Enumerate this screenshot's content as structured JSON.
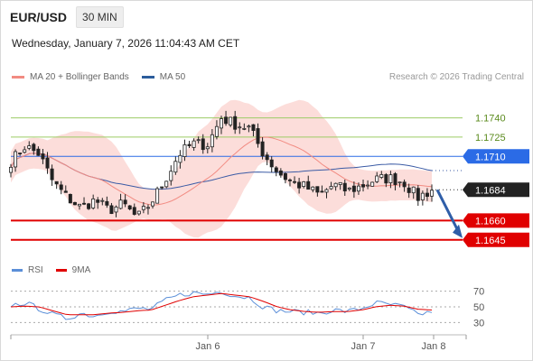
{
  "header": {
    "symbol": "EUR/USD",
    "timeframe": "30 MIN"
  },
  "datetime": "Wednesday, January 7, 2026 11:04:43 AM CET",
  "legend": {
    "items": [
      {
        "label": "MA 20 + Bollinger Bands",
        "color": "#f28b82"
      },
      {
        "label": "MA 50",
        "color": "#2c5d9c"
      }
    ],
    "credit": "Research © 2026 Trading Central"
  },
  "rsi_legend": {
    "items": [
      {
        "label": "RSI",
        "color": "#5b8fd8"
      },
      {
        "label": "9MA",
        "color": "#e00000"
      }
    ]
  },
  "colors": {
    "candle": "#222222",
    "band": "#fbd7d3",
    "ma20": "#f28b82",
    "ma50": "#3b5ba5",
    "green": "#9ccc65",
    "blue_level": "#2b6be6",
    "red_level": "#e00000",
    "arrow": "#2f5ea8"
  },
  "chart_data": [
    {
      "type": "candlestick",
      "title": "EUR/USD",
      "ylim": [
        1.1635,
        1.1765
      ],
      "x_tick_labels": [
        "Jan 6",
        "Jan 7",
        "Jan 8"
      ],
      "levels": [
        {
          "label": "1.1740",
          "value": 1.174,
          "style": "green"
        },
        {
          "label": "1.1725",
          "value": 1.1725,
          "style": "green"
        },
        {
          "label": "1.1710",
          "value": 1.171,
          "style": "blue"
        },
        {
          "label": "1.1684",
          "value": 1.1684,
          "style": "current"
        },
        {
          "label": "1.1660",
          "value": 1.166,
          "style": "red"
        },
        {
          "label": "1.1645",
          "value": 1.1645,
          "style": "red"
        }
      ],
      "close_anchors": [
        1.1706,
        1.1718,
        1.1712,
        1.169,
        1.1678,
        1.167,
        1.1676,
        1.1668,
        1.1673,
        1.1662,
        1.1674,
        1.1692,
        1.1712,
        1.172,
        1.1719,
        1.174,
        1.1735,
        1.1732,
        1.1712,
        1.1698,
        1.169,
        1.1686,
        1.168,
        1.1688,
        1.1683,
        1.1687,
        1.1692,
        1.1693,
        1.169,
        1.1678,
        1.1684
      ],
      "forecast_target": 1.1645
    },
    {
      "type": "line",
      "title": "RSI",
      "ylim": [
        20,
        80
      ],
      "y_ticks": [
        70,
        50,
        30
      ],
      "series": [
        {
          "name": "RSI",
          "anchors": [
            52,
            55,
            48,
            40,
            35,
            42,
            38,
            45,
            44,
            48,
            47,
            58,
            65,
            68,
            66,
            70,
            64,
            62,
            50,
            45,
            44,
            43,
            42,
            46,
            44,
            48,
            55,
            53,
            50,
            40,
            44
          ]
        },
        {
          "name": "9MA",
          "anchors": [
            50,
            51,
            50,
            45,
            40,
            40,
            40,
            42,
            43,
            45,
            46,
            52,
            58,
            63,
            65,
            67,
            65,
            63,
            57,
            50,
            46,
            44,
            43,
            44,
            44,
            46,
            50,
            52,
            51,
            47,
            46
          ]
        }
      ]
    }
  ]
}
